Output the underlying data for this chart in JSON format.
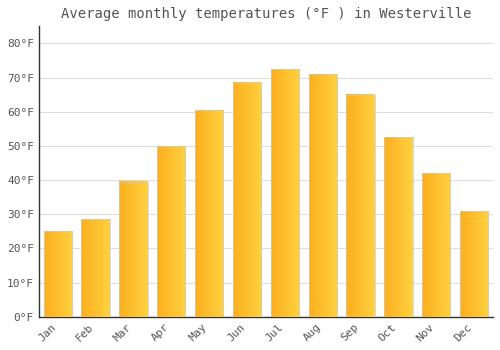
{
  "months": [
    "Jan",
    "Feb",
    "Mar",
    "Apr",
    "May",
    "Jun",
    "Jul",
    "Aug",
    "Sep",
    "Oct",
    "Nov",
    "Dec"
  ],
  "values": [
    25,
    28.5,
    39.5,
    50,
    60.5,
    68.5,
    72.5,
    71,
    65,
    52.5,
    42,
    31
  ],
  "bar_color": "#FFA500",
  "bar_color_light": "#FFD060",
  "bar_edge_color": "#CCCCCC",
  "title": "Average monthly temperatures (°F ) in Westerville",
  "ylim": [
    0,
    85
  ],
  "yticks": [
    0,
    10,
    20,
    30,
    40,
    50,
    60,
    70,
    80
  ],
  "ytick_labels": [
    "0°F",
    "10°F",
    "20°F",
    "30°F",
    "40°F",
    "50°F",
    "60°F",
    "70°F",
    "80°F"
  ],
  "bg_color": "#FFFFFF",
  "grid_color": "#DDDDDD",
  "title_fontsize": 10,
  "tick_fontsize": 8,
  "font_color": "#555555",
  "bar_width": 0.75
}
